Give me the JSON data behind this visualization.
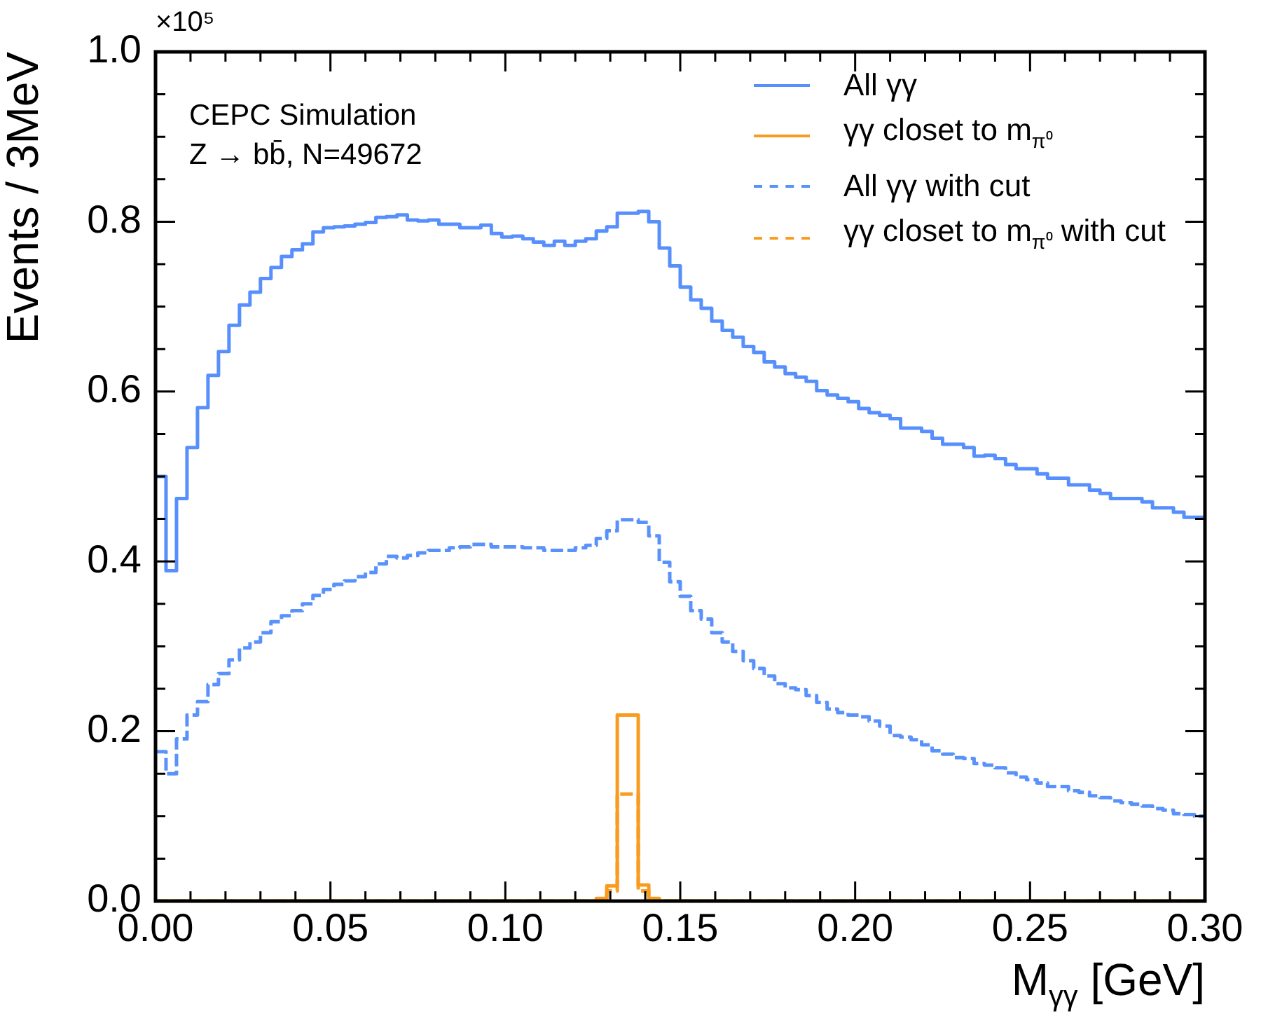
{
  "chart_data": {
    "type": "histogram",
    "xlabel": "M$_{γγ}$ [GeV]",
    "ylabel": "Events / 3MeV",
    "annotations": [
      "CEPC Simulation",
      "Z → bb̄, N=49672",
      "×10⁵"
    ],
    "legend": "top right",
    "xlim": [
      0,
      0.3
    ],
    "ylim": [
      0,
      1.0
    ],
    "xticks": [
      {
        "value": 0,
        "label": "0.00"
      },
      {
        "value": 0.01,
        "label": null
      },
      {
        "value": 0.02,
        "label": null
      },
      {
        "value": 0.03,
        "label": null
      },
      {
        "value": 0.04,
        "label": null
      },
      {
        "value": 0.05,
        "label": "0.05"
      },
      {
        "value": 0.06,
        "label": null
      },
      {
        "value": 0.07,
        "label": null
      },
      {
        "value": 0.08,
        "label": null
      },
      {
        "value": 0.09,
        "label": null
      },
      {
        "value": 0.1,
        "label": "0.10"
      },
      {
        "value": 0.11,
        "label": null
      },
      {
        "value": 0.12,
        "label": null
      },
      {
        "value": 0.13,
        "label": null
      },
      {
        "value": 0.14,
        "label": null
      },
      {
        "value": 0.15,
        "label": "0.15"
      },
      {
        "value": 0.16,
        "label": null
      },
      {
        "value": 0.17,
        "label": null
      },
      {
        "value": 0.18,
        "label": null
      },
      {
        "value": 0.19,
        "label": null
      },
      {
        "value": 0.2,
        "label": "0.20"
      },
      {
        "value": 0.21,
        "label": null
      },
      {
        "value": 0.22,
        "label": null
      },
      {
        "value": 0.23,
        "label": null
      },
      {
        "value": 0.24,
        "label": null
      },
      {
        "value": 0.25,
        "label": "0.25"
      },
      {
        "value": 0.26,
        "label": null
      },
      {
        "value": 0.27,
        "label": null
      },
      {
        "value": 0.28,
        "label": null
      },
      {
        "value": 0.29,
        "label": null
      },
      {
        "value": 0.3,
        "label": "0.30"
      }
    ],
    "yticks": [
      {
        "value": 0,
        "label": "0.0"
      },
      {
        "value": 0.05,
        "label": null
      },
      {
        "value": 0.1,
        "label": null
      },
      {
        "value": 0.15,
        "label": null
      },
      {
        "value": 0.2,
        "label": "0.2"
      },
      {
        "value": 0.25,
        "label": null
      },
      {
        "value": 0.3,
        "label": null
      },
      {
        "value": 0.35,
        "label": null
      },
      {
        "value": 0.4,
        "label": "0.4"
      },
      {
        "value": 0.45,
        "label": null
      },
      {
        "value": 0.5,
        "label": null
      },
      {
        "value": 0.55,
        "label": null
      },
      {
        "value": 0.6,
        "label": "0.6"
      },
      {
        "value": 0.65,
        "label": null
      },
      {
        "value": 0.7,
        "label": null
      },
      {
        "value": 0.75,
        "label": null
      },
      {
        "value": 0.8,
        "label": "0.8"
      },
      {
        "value": 0.85,
        "label": null
      },
      {
        "value": 0.9,
        "label": null
      },
      {
        "value": 0.95,
        "label": null
      },
      {
        "value": 1.0,
        "label": "1.0"
      }
    ],
    "bins": [
      0,
      0.003,
      0.006,
      0.009,
      0.012,
      0.015,
      0.018,
      0.021,
      0.024,
      0.027,
      0.03,
      0.033,
      0.036,
      0.039,
      0.042,
      0.045,
      0.048,
      0.051,
      0.054,
      0.057,
      0.06,
      0.063,
      0.066,
      0.069,
      0.072,
      0.075,
      0.078,
      0.081,
      0.084,
      0.087,
      0.09,
      0.093,
      0.096,
      0.099,
      0.102,
      0.105,
      0.108,
      0.111,
      0.114,
      0.117,
      0.12,
      0.123,
      0.126,
      0.129,
      0.132,
      0.135,
      0.138,
      0.141,
      0.144,
      0.147,
      0.15,
      0.153,
      0.156,
      0.159,
      0.162,
      0.165,
      0.168,
      0.171,
      0.174,
      0.177,
      0.18,
      0.183,
      0.186,
      0.189,
      0.192,
      0.195,
      0.198,
      0.201,
      0.204,
      0.207,
      0.21,
      0.213,
      0.216,
      0.219,
      0.222,
      0.225,
      0.228,
      0.231,
      0.234,
      0.237,
      0.24,
      0.243,
      0.246,
      0.249,
      0.252,
      0.255,
      0.258,
      0.261,
      0.264,
      0.267,
      0.27,
      0.273,
      0.276,
      0.279,
      0.282,
      0.285,
      0.288,
      0.291,
      0.294,
      0.297,
      0.3
    ],
    "series": [
      {
        "name": "All γγ",
        "color": "#5790fc",
        "line_style": "solid",
        "values": [
          0.5,
          0.389,
          0.474,
          0.534,
          0.581,
          0.619,
          0.647,
          0.678,
          0.702,
          0.717,
          0.733,
          0.746,
          0.759,
          0.767,
          0.774,
          0.788,
          0.793,
          0.794,
          0.795,
          0.797,
          0.799,
          0.805,
          0.806,
          0.808,
          0.802,
          0.801,
          0.802,
          0.797,
          0.797,
          0.793,
          0.793,
          0.796,
          0.786,
          0.782,
          0.783,
          0.78,
          0.776,
          0.772,
          0.777,
          0.772,
          0.777,
          0.78,
          0.789,
          0.794,
          0.81,
          0.81,
          0.812,
          0.8,
          0.769,
          0.748,
          0.723,
          0.708,
          0.698,
          0.683,
          0.672,
          0.664,
          0.653,
          0.646,
          0.635,
          0.629,
          0.621,
          0.617,
          0.612,
          0.601,
          0.596,
          0.592,
          0.588,
          0.58,
          0.575,
          0.572,
          0.568,
          0.557,
          0.557,
          0.553,
          0.545,
          0.538,
          0.538,
          0.534,
          0.524,
          0.525,
          0.521,
          0.514,
          0.509,
          0.509,
          0.503,
          0.498,
          0.498,
          0.49,
          0.49,
          0.484,
          0.48,
          0.474,
          0.474,
          0.474,
          0.47,
          0.463,
          0.463,
          0.458,
          0.452,
          0.452
        ]
      },
      {
        "name": "γγ closet to m$_{π⁰}$",
        "color": "#f89c20",
        "line_style": "solid",
        "values": [
          0,
          0,
          0,
          0,
          0,
          0,
          0,
          0,
          0,
          0,
          0,
          0,
          0,
          0,
          0,
          0,
          0,
          0,
          0,
          0,
          0,
          0,
          0,
          0,
          0,
          0,
          0,
          0,
          0,
          0,
          0,
          0,
          0,
          0,
          0,
          0,
          0,
          0,
          0,
          0,
          0,
          0,
          0.003,
          0.018,
          0.219,
          0.219,
          0.019,
          0.003,
          0,
          0,
          0,
          0,
          0,
          0,
          0,
          0,
          0,
          0,
          0,
          0,
          0,
          0,
          0,
          0,
          0,
          0,
          0,
          0,
          0,
          0,
          0,
          0,
          0,
          0,
          0,
          0,
          0,
          0,
          0,
          0,
          0,
          0,
          0,
          0,
          0,
          0,
          0,
          0,
          0,
          0,
          0,
          0,
          0,
          0,
          0,
          0,
          0,
          0,
          0,
          0
        ]
      },
      {
        "name": "All γγ with cut",
        "color": "#5a92fb",
        "line_style": "dashed",
        "values": [
          0.176,
          0.15,
          0.191,
          0.219,
          0.235,
          0.255,
          0.268,
          0.284,
          0.298,
          0.305,
          0.316,
          0.329,
          0.336,
          0.342,
          0.35,
          0.36,
          0.367,
          0.373,
          0.377,
          0.382,
          0.387,
          0.397,
          0.406,
          0.404,
          0.407,
          0.41,
          0.413,
          0.413,
          0.416,
          0.417,
          0.42,
          0.42,
          0.417,
          0.417,
          0.417,
          0.416,
          0.416,
          0.413,
          0.413,
          0.413,
          0.416,
          0.419,
          0.427,
          0.436,
          0.449,
          0.449,
          0.446,
          0.43,
          0.399,
          0.376,
          0.359,
          0.342,
          0.332,
          0.316,
          0.305,
          0.294,
          0.283,
          0.274,
          0.265,
          0.256,
          0.251,
          0.249,
          0.242,
          0.234,
          0.226,
          0.222,
          0.219,
          0.217,
          0.212,
          0.206,
          0.195,
          0.193,
          0.19,
          0.184,
          0.177,
          0.173,
          0.169,
          0.168,
          0.162,
          0.16,
          0.157,
          0.151,
          0.146,
          0.143,
          0.139,
          0.135,
          0.135,
          0.13,
          0.128,
          0.124,
          0.122,
          0.118,
          0.116,
          0.114,
          0.112,
          0.109,
          0.107,
          0.103,
          0.102,
          0.1
        ]
      },
      {
        "name": "γγ closet to m$_{π⁰}$ with cut",
        "color": "#f99e24",
        "line_style": "dashed",
        "values": [
          0,
          0,
          0,
          0,
          0,
          0,
          0,
          0,
          0,
          0,
          0,
          0,
          0,
          0,
          0,
          0,
          0,
          0,
          0,
          0,
          0,
          0,
          0,
          0,
          0,
          0,
          0,
          0,
          0,
          0,
          0,
          0,
          0,
          0,
          0,
          0,
          0,
          0,
          0,
          0,
          0,
          0,
          0,
          0.012,
          0.126,
          0.126,
          0.012,
          0,
          0,
          0,
          0,
          0,
          0,
          0,
          0,
          0,
          0,
          0,
          0,
          0,
          0,
          0,
          0,
          0,
          0,
          0,
          0,
          0,
          0,
          0,
          0,
          0,
          0,
          0,
          0,
          0,
          0,
          0,
          0,
          0,
          0,
          0,
          0,
          0,
          0,
          0,
          0,
          0,
          0,
          0,
          0,
          0,
          0,
          0,
          0,
          0,
          0,
          0,
          0,
          0
        ]
      }
    ]
  }
}
